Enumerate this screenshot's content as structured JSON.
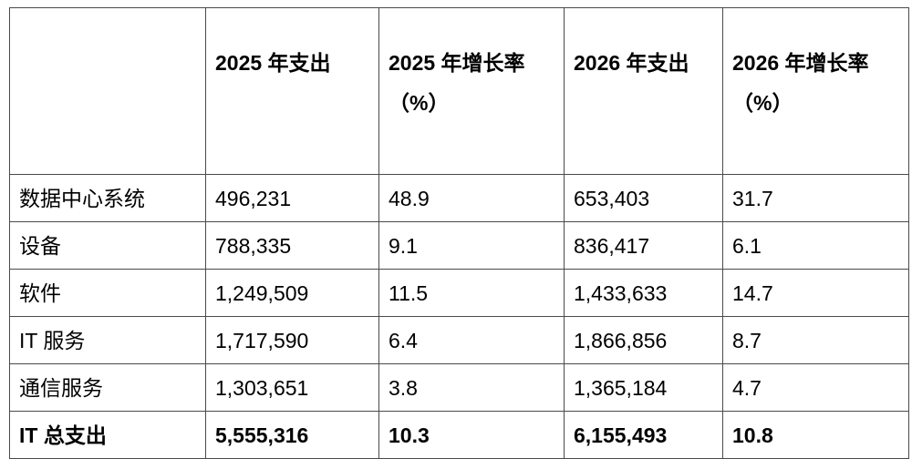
{
  "table": {
    "title_semantic": "IT spending forecast by segment, 2025 vs 2026",
    "border_color": "#4a4a4a",
    "text_color": "#000000",
    "headers": {
      "category": {
        "line1": "",
        "line2": ""
      },
      "spend_2025": {
        "line1": "2025 年支出",
        "line2": ""
      },
      "growth_2025": {
        "line1": "2025 年增长率",
        "line2": "（%）"
      },
      "spend_2026": {
        "line1": "2026 年支出",
        "line2": ""
      },
      "growth_2026": {
        "line1": "2026 年增长率",
        "line2": "（%）"
      }
    },
    "rows": [
      {
        "label": "数据中心系统",
        "spend_2025": "496,231",
        "growth_2025": "48.9",
        "spend_2026": "653,403",
        "growth_2026": "31.7"
      },
      {
        "label": "设备",
        "spend_2025": "788,335",
        "growth_2025": "9.1",
        "spend_2026": "836,417",
        "growth_2026": "6.1"
      },
      {
        "label": "软件",
        "spend_2025": "1,249,509",
        "growth_2025": "11.5",
        "spend_2026": "1,433,633",
        "growth_2026": "14.7"
      },
      {
        "label": "IT 服务",
        "spend_2025": "1,717,590",
        "growth_2025": "6.4",
        "spend_2026": "1,866,856",
        "growth_2026": "8.7"
      },
      {
        "label": "通信服务",
        "spend_2025": "1,303,651",
        "growth_2025": "3.8",
        "spend_2026": "1,365,184",
        "growth_2026": "4.7"
      },
      {
        "label": "IT 总支出",
        "spend_2025": "5,555,316",
        "growth_2025": "10.3",
        "spend_2026": "6,155,493",
        "growth_2026": "10.8"
      }
    ]
  }
}
